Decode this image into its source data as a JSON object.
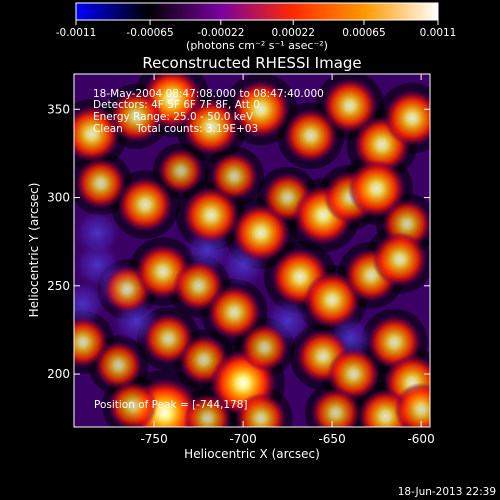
{
  "chart_data": {
    "type": "heatmap",
    "title": "Reconstructed RHESSI Image",
    "colorbar": {
      "ticks": [
        "-0.0011",
        "-0.00065",
        "-0.00022",
        "0.00022",
        "0.00065",
        "0.0011"
      ],
      "tick_values": [
        -0.0011,
        -0.00065,
        -0.00022,
        0.00022,
        0.00065,
        0.0011
      ],
      "range": [
        -0.0011,
        0.0011
      ],
      "label": "(photons cm⁻² s⁻¹ asec⁻²)",
      "colors": [
        "#0000ff",
        "#000000",
        "#7a00a0",
        "#ff2a00",
        "#ff9a00",
        "#ffffff"
      ]
    },
    "xlabel": "Heliocentric X (arcsec)",
    "ylabel": "Heliocentric Y (arcsec)",
    "xlim": [
      -795,
      -595
    ],
    "ylim": [
      170,
      370
    ],
    "xticks": [
      -750,
      -700,
      -650,
      -600
    ],
    "yticks": [
      200,
      250,
      300,
      350
    ],
    "annotations": [
      "18-May-2004 08:47:08.000 to 08:47:40.000",
      "Detectors: 4F 5F 6F 7F 8F, Att 0",
      "Energy Range: 25.0 - 50.0 keV",
      "Clean    Total counts: 3.19E+03"
    ],
    "peak_label": "Position of Peak = [-744,178]",
    "peak": [
      -744,
      178
    ],
    "footer": "18-Jun-2013 22:39",
    "blobs": [
      {
        "x": -740,
        "y": 356,
        "v": 1.0
      },
      {
        "x": -785,
        "y": 336,
        "v": 0.85
      },
      {
        "x": -760,
        "y": 346,
        "v": 0.7
      },
      {
        "x": -718,
        "y": 340,
        "v": 0.85
      },
      {
        "x": -690,
        "y": 350,
        "v": 0.9
      },
      {
        "x": -662,
        "y": 335,
        "v": 0.75
      },
      {
        "x": -640,
        "y": 352,
        "v": 0.8
      },
      {
        "x": -622,
        "y": 330,
        "v": 0.85
      },
      {
        "x": -605,
        "y": 345,
        "v": 0.85
      },
      {
        "x": -780,
        "y": 308,
        "v": 0.65
      },
      {
        "x": -755,
        "y": 296,
        "v": 0.8
      },
      {
        "x": -735,
        "y": 315,
        "v": 0.45
      },
      {
        "x": -718,
        "y": 290,
        "v": 0.85
      },
      {
        "x": -705,
        "y": 312,
        "v": 0.55
      },
      {
        "x": -690,
        "y": 280,
        "v": 0.9
      },
      {
        "x": -675,
        "y": 300,
        "v": 0.6
      },
      {
        "x": -655,
        "y": 290,
        "v": 0.95
      },
      {
        "x": -640,
        "y": 300,
        "v": 0.7
      },
      {
        "x": -625,
        "y": 305,
        "v": 0.9
      },
      {
        "x": -608,
        "y": 285,
        "v": 0.6
      },
      {
        "x": -765,
        "y": 248,
        "v": 0.55
      },
      {
        "x": -745,
        "y": 258,
        "v": 0.8
      },
      {
        "x": -725,
        "y": 250,
        "v": 0.65
      },
      {
        "x": -705,
        "y": 235,
        "v": 0.75
      },
      {
        "x": -668,
        "y": 255,
        "v": 0.9
      },
      {
        "x": -650,
        "y": 242,
        "v": 0.85
      },
      {
        "x": -628,
        "y": 256,
        "v": 0.75
      },
      {
        "x": -612,
        "y": 265,
        "v": 0.8
      },
      {
        "x": -790,
        "y": 218,
        "v": 0.65
      },
      {
        "x": -770,
        "y": 205,
        "v": 0.55
      },
      {
        "x": -742,
        "y": 220,
        "v": 0.65
      },
      {
        "x": -722,
        "y": 208,
        "v": 0.6
      },
      {
        "x": -700,
        "y": 195,
        "v": 1.2
      },
      {
        "x": -688,
        "y": 215,
        "v": 0.55
      },
      {
        "x": -655,
        "y": 210,
        "v": 0.75
      },
      {
        "x": -638,
        "y": 200,
        "v": 0.7
      },
      {
        "x": -615,
        "y": 218,
        "v": 0.75
      },
      {
        "x": -605,
        "y": 195,
        "v": 0.85
      },
      {
        "x": -744,
        "y": 178,
        "v": 1.3
      },
      {
        "x": -762,
        "y": 182,
        "v": 0.6
      },
      {
        "x": -720,
        "y": 175,
        "v": 0.55
      },
      {
        "x": -690,
        "y": 175,
        "v": 0.65
      },
      {
        "x": -648,
        "y": 178,
        "v": 0.6
      },
      {
        "x": -620,
        "y": 176,
        "v": 0.8
      },
      {
        "x": -600,
        "y": 180,
        "v": 0.75
      }
    ],
    "dips": [
      {
        "x": -782,
        "y": 262,
        "v": 0.55
      },
      {
        "x": -770,
        "y": 250,
        "v": 0.45
      },
      {
        "x": -760,
        "y": 230,
        "v": 0.45
      },
      {
        "x": -790,
        "y": 240,
        "v": 0.4
      },
      {
        "x": -782,
        "y": 280,
        "v": 0.35
      },
      {
        "x": -700,
        "y": 262,
        "v": 0.35
      },
      {
        "x": -675,
        "y": 230,
        "v": 0.3
      },
      {
        "x": -720,
        "y": 270,
        "v": 0.3
      },
      {
        "x": -640,
        "y": 220,
        "v": 0.25
      }
    ]
  }
}
